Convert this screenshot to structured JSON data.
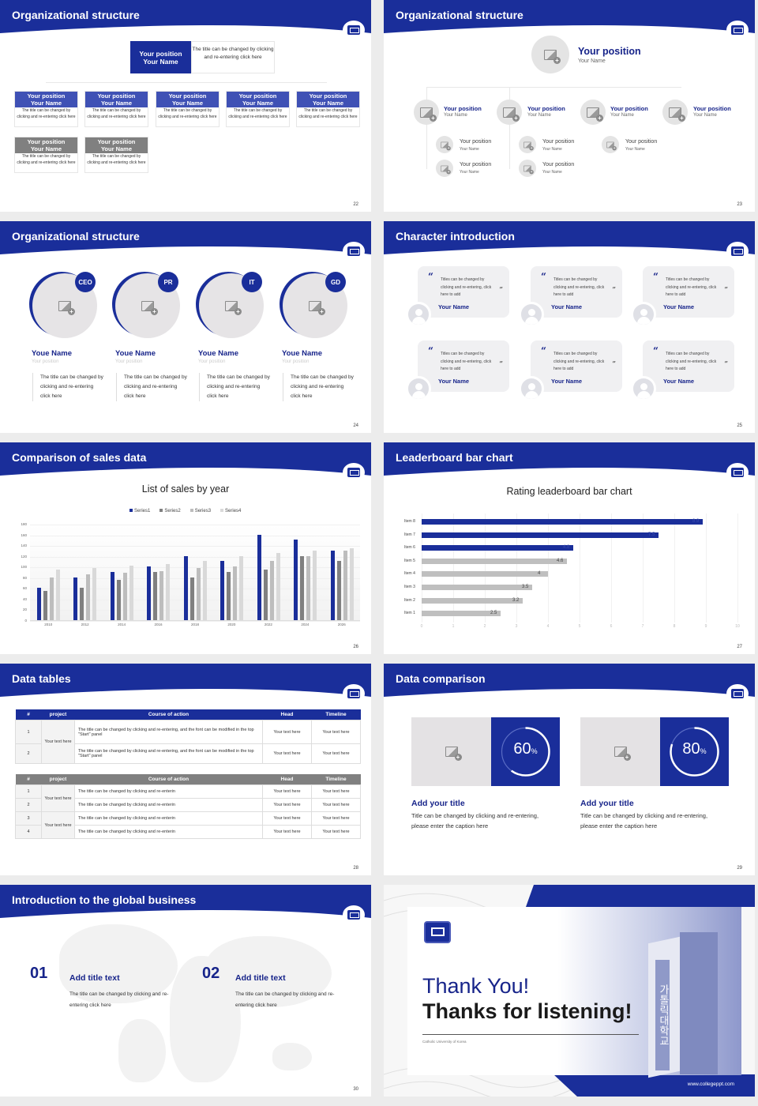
{
  "theme": {
    "primary": "#1a2e9a",
    "primary_dark": "#17248a",
    "gray_header": "#808080",
    "placeholder_gray": "#e4e4e4"
  },
  "slides": [
    {
      "page": "22",
      "title": "Organizational structure",
      "top_box": {
        "position": "Your position",
        "name": "Your Name",
        "desc": "The title can be changed by clicking and re-entering click here"
      },
      "cards": [
        {
          "position": "Your position",
          "name": "Your Name",
          "desc": "The title can be changed by clicking and re-entering click here",
          "style": "blue"
        },
        {
          "position": "Your position",
          "name": "Your Name",
          "desc": "The title can be changed by clicking and re-entering click here",
          "style": "blue"
        },
        {
          "position": "Your position",
          "name": "Your Name",
          "desc": "The title can be changed by clicking and re-entering click here",
          "style": "blue"
        },
        {
          "position": "Your position",
          "name": "Your Name",
          "desc": "The title can be changed by clicking and re-entering click here",
          "style": "blue"
        },
        {
          "position": "Your position",
          "name": "Your Name",
          "desc": "The title can be changed by clicking and re-entering click here",
          "style": "blue"
        },
        {
          "position": "Your position",
          "name": "Your Name",
          "desc": "The title can be changed by clicking and re-entering click here",
          "style": "gray"
        },
        {
          "position": "Your position",
          "name": "Your Name",
          "desc": "The title can be changed by clicking and re-entering click here",
          "style": "gray"
        }
      ]
    },
    {
      "page": "23",
      "title": "Organizational structure",
      "top": {
        "position": "Your position",
        "name": "Your Name"
      },
      "level1": [
        {
          "position": "Your position",
          "name": "Your Name"
        },
        {
          "position": "Your position",
          "name": "Your Name"
        },
        {
          "position": "Your position",
          "name": "Your Name"
        },
        {
          "position": "Your position",
          "name": "Your Name"
        }
      ],
      "level2": [
        {
          "position": "Your position",
          "name": "Your Name"
        },
        {
          "position": "Your position",
          "name": "Your Name"
        },
        {
          "position": "Your position",
          "name": "Your Name"
        },
        {
          "position": "Your position",
          "name": "Your Name"
        },
        {
          "position": "Your position",
          "name": "Your Name"
        }
      ]
    },
    {
      "page": "24",
      "title": "Organizational structure",
      "people": [
        {
          "tag": "CEO",
          "name": "Youe Name",
          "position": "Your position",
          "desc": "The title can be changed by clicking and re-entering click here"
        },
        {
          "tag": "PR",
          "name": "Youe Name",
          "position": "Your position",
          "desc": "The title can be changed by clicking and re-entering click here"
        },
        {
          "tag": "IT",
          "name": "Youe Name",
          "position": "Your position",
          "desc": "The title can be changed by clicking and re-entering click here"
        },
        {
          "tag": "GD",
          "name": "Youe Name",
          "position": "Your position",
          "desc": "The title can be changed by clicking and re-entering click here"
        }
      ]
    },
    {
      "page": "25",
      "title": "Character introduction",
      "quotes": [
        {
          "text": "Titles can be changed by clicking and re-entering, click here to add",
          "name": "Your Name"
        },
        {
          "text": "Titles can be changed by clicking and re-entering, click here to add",
          "name": "Your Name"
        },
        {
          "text": "Titles can be changed by clicking and re-entering, click here to add",
          "name": "Your Name"
        },
        {
          "text": "Titles can be changed by clicking and re-entering, click here to add",
          "name": "Your Name"
        },
        {
          "text": "Titles can be changed by clicking and re-entering, click here to add",
          "name": "Your Name"
        },
        {
          "text": "Titles can be changed by clicking and re-entering, click here to add",
          "name": "Your Name"
        }
      ],
      "open_quote": "“",
      "close_quote": "”"
    },
    {
      "page": "26",
      "title": "Comparison of sales data",
      "chart_title": "List of sales by year"
    },
    {
      "page": "27",
      "title": "Leaderboard bar chart",
      "chart_title": "Rating leaderboard bar chart"
    },
    {
      "page": "28",
      "title": "Data tables",
      "table1": {
        "headers": [
          "#",
          "project",
          "Course of action",
          "Head",
          "Timeline"
        ],
        "project_cell": "Your text here",
        "rows": [
          {
            "idx": "1",
            "action": "The title can be changed by clicking and re-entering, and the font can be modified in the top \"Start\" panel",
            "head": "Your text here",
            "timeline": "Your text here"
          },
          {
            "idx": "2",
            "action": "The title can be changed by clicking and re-entering, and the font can be modified in the top \"Start\" panel",
            "head": "Your text here",
            "timeline": "Your text here"
          }
        ]
      },
      "table2": {
        "headers": [
          "#",
          "project",
          "Course of action",
          "Head",
          "Timeline"
        ],
        "project_cells": [
          "Your text here",
          "Your text here"
        ],
        "rows": [
          {
            "idx": "1",
            "action": "The title can be changed by clicking and re-enterin",
            "head": "Your text here",
            "timeline": "Your text here"
          },
          {
            "idx": "2",
            "action": "The title can be changed by clicking and re-enterin",
            "head": "Your text here",
            "timeline": "Your text here"
          },
          {
            "idx": "3",
            "action": "The title can be changed by clicking and re-enterin",
            "head": "Your text here",
            "timeline": "Your text here"
          },
          {
            "idx": "4",
            "action": "The title can be changed by clicking and re-enterin",
            "head": "Your text here",
            "timeline": "Your text here"
          }
        ]
      }
    },
    {
      "page": "29",
      "title": "Data comparison",
      "items": [
        {
          "value": "60",
          "unit": "%",
          "pct": 60,
          "title": "Add your title",
          "desc": "Title can be changed by clicking and re-entering, please enter the caption here"
        },
        {
          "value": "80",
          "unit": "%",
          "pct": 80,
          "title": "Add your title",
          "desc": "Title can be changed by clicking and re-entering, please enter the caption here"
        }
      ]
    },
    {
      "page": "30",
      "title": "Introduction to the global business",
      "items": [
        {
          "num": "01",
          "title": "Add title text",
          "desc": "The title can be changed by clicking and re-entering click here"
        },
        {
          "num": "02",
          "title": "Add title text",
          "desc": "The title can be changed by clicking and re-entering click here"
        }
      ]
    },
    {
      "title": "Thank You!",
      "subtitle": "Thanks for listening!",
      "caption": "Catholic University of Korea",
      "url": "www.collegeppt.com",
      "sign_text": "가톨릭대학교"
    }
  ],
  "chart_data": [
    {
      "type": "bar",
      "title": "List of sales by year",
      "categories": [
        "2010",
        "2012",
        "2014",
        "2016",
        "2018",
        "2020",
        "2022",
        "2024",
        "2026"
      ],
      "series": [
        {
          "name": "Series1",
          "color": "#1a2e9a",
          "values": [
            60,
            80,
            90,
            100,
            120,
            110,
            160,
            150,
            130
          ]
        },
        {
          "name": "Series2",
          "color": "#808080",
          "values": [
            55,
            60,
            75,
            90,
            80,
            90,
            95,
            120,
            110
          ]
        },
        {
          "name": "Series3",
          "color": "#bdbdbd",
          "values": [
            80,
            85,
            88,
            92,
            98,
            100,
            110,
            120,
            130
          ]
        },
        {
          "name": "Series4",
          "color": "#d9d9d9",
          "values": [
            95,
            98,
            102,
            105,
            110,
            120,
            126,
            130,
            135
          ]
        }
      ],
      "yticks": [
        "0",
        "20",
        "40",
        "60",
        "80",
        "100",
        "120",
        "140",
        "160",
        "180"
      ],
      "ylim": [
        0,
        180
      ],
      "legend_position": "top",
      "grid": true,
      "xlabel": "",
      "ylabel": ""
    },
    {
      "type": "bar",
      "orientation": "horizontal",
      "title": "Rating leaderboard bar chart",
      "categories": [
        "Item 8",
        "Item 7",
        "Item 6",
        "Item 5",
        "Item 4",
        "Item 3",
        "Item 2",
        "Item 1"
      ],
      "values": [
        8.9,
        7.5,
        4.8,
        4.6,
        4,
        3.5,
        3.2,
        2.5
      ],
      "value_labels": [
        "8.9",
        "7.5",
        "4.8",
        "4.6",
        "4",
        "3.5",
        "3.2",
        "2.5"
      ],
      "highlight": [
        "Item 8",
        "Item 7",
        "Item 6"
      ],
      "colors": {
        "highlight": "#1a2e9a",
        "normal": "#bfbfbf"
      },
      "xticks": [
        "0",
        "1",
        "2",
        "3",
        "4",
        "5",
        "6",
        "7",
        "8",
        "9",
        "10"
      ],
      "xlim": [
        0,
        10
      ],
      "xlabel": "",
      "ylabel": ""
    }
  ]
}
